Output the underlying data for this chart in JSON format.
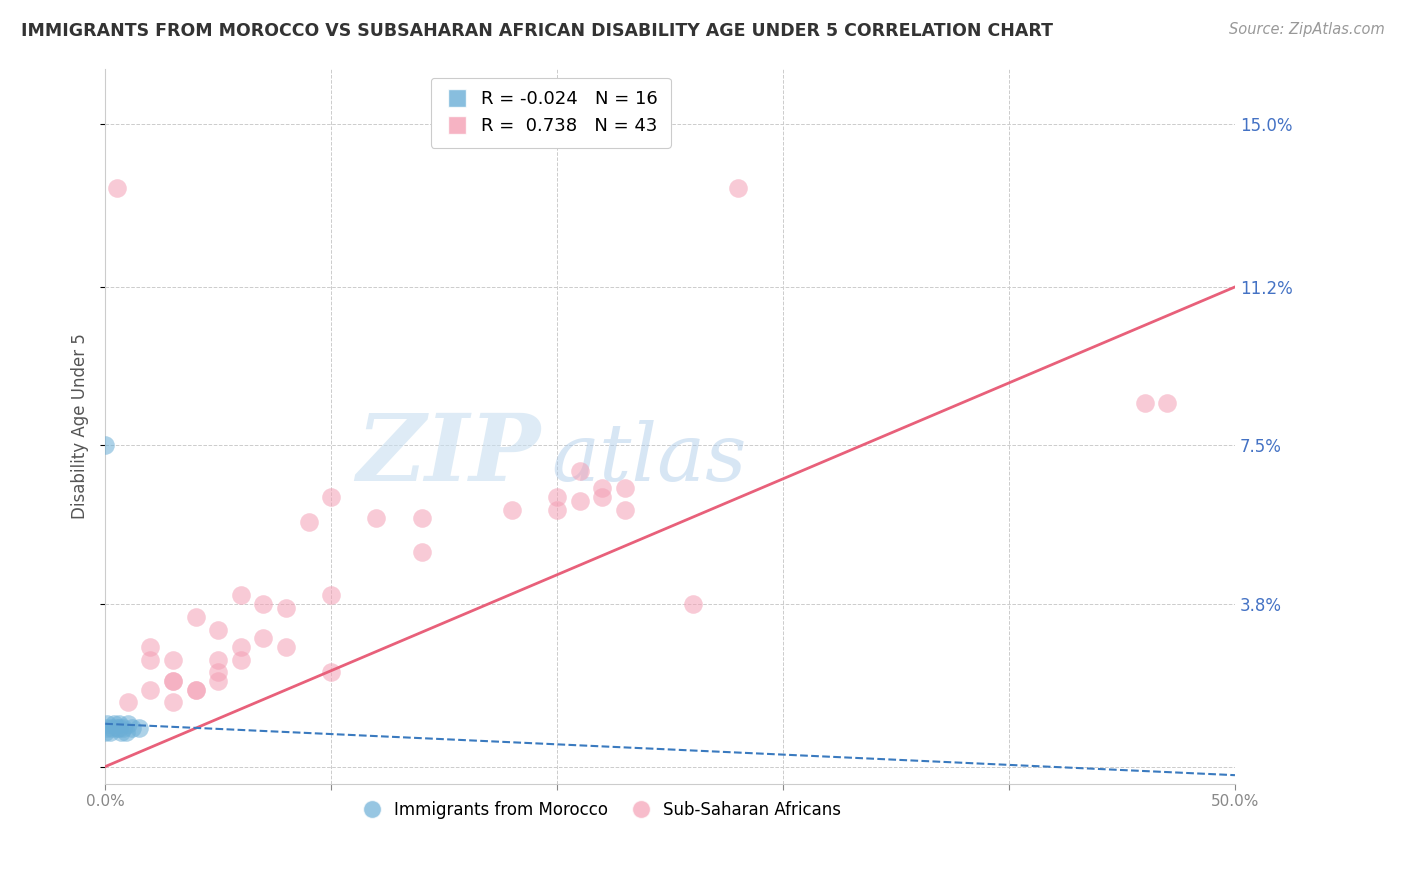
{
  "title": "IMMIGRANTS FROM MOROCCO VS SUBSAHARAN AFRICAN DISABILITY AGE UNDER 5 CORRELATION CHART",
  "source": "Source: ZipAtlas.com",
  "ylabel": "Disability Age Under 5",
  "yticks_right": [
    0.0,
    0.038,
    0.075,
    0.112,
    0.15
  ],
  "ytick_labels_right": [
    "",
    "3.8%",
    "7.5%",
    "11.2%",
    "15.0%"
  ],
  "xlim": [
    0.0,
    0.5
  ],
  "ylim": [
    -0.004,
    0.163
  ],
  "R_morocco": -0.024,
  "N_morocco": 16,
  "R_subsaharan": 0.738,
  "N_subsaharan": 43,
  "morocco_color": "#6baed6",
  "subsaharan_color": "#f4a0b5",
  "morocco_line_color": "#3a7abf",
  "subsaharan_line_color": "#e8607a",
  "legend_label_morocco": "Immigrants from Morocco",
  "legend_label_subsaharan": "Sub-Saharan Africans",
  "watermark_zip": "ZIP",
  "watermark_atlas": "atlas",
  "subsaharan_x": [
    0.28,
    0.005,
    0.12,
    0.21,
    0.22,
    0.23,
    0.21,
    0.23,
    0.14,
    0.18,
    0.2,
    0.22,
    0.2,
    0.26,
    0.09,
    0.14,
    0.1,
    0.07,
    0.04,
    0.06,
    0.08,
    0.1,
    0.05,
    0.07,
    0.06,
    0.05,
    0.03,
    0.02,
    0.01,
    0.03,
    0.04,
    0.02,
    0.02,
    0.03,
    0.03,
    0.04,
    0.05,
    0.05,
    0.06,
    0.08,
    0.1,
    0.47,
    0.46
  ],
  "subsaharan_y": [
    0.135,
    0.135,
    0.058,
    0.069,
    0.065,
    0.065,
    0.062,
    0.06,
    0.058,
    0.06,
    0.063,
    0.063,
    0.06,
    0.038,
    0.057,
    0.05,
    0.063,
    0.038,
    0.035,
    0.04,
    0.037,
    0.04,
    0.032,
    0.03,
    0.025,
    0.02,
    0.02,
    0.018,
    0.015,
    0.015,
    0.018,
    0.025,
    0.028,
    0.02,
    0.025,
    0.018,
    0.022,
    0.025,
    0.028,
    0.028,
    0.022,
    0.085,
    0.085
  ],
  "morocco_x": [
    0.0,
    0.001,
    0.001,
    0.002,
    0.003,
    0.004,
    0.005,
    0.006,
    0.006,
    0.007,
    0.008,
    0.009,
    0.01,
    0.012,
    0.015,
    0.0
  ],
  "morocco_y": [
    0.008,
    0.009,
    0.01,
    0.008,
    0.009,
    0.01,
    0.009,
    0.01,
    0.009,
    0.008,
    0.009,
    0.008,
    0.01,
    0.009,
    0.009,
    0.075
  ]
}
